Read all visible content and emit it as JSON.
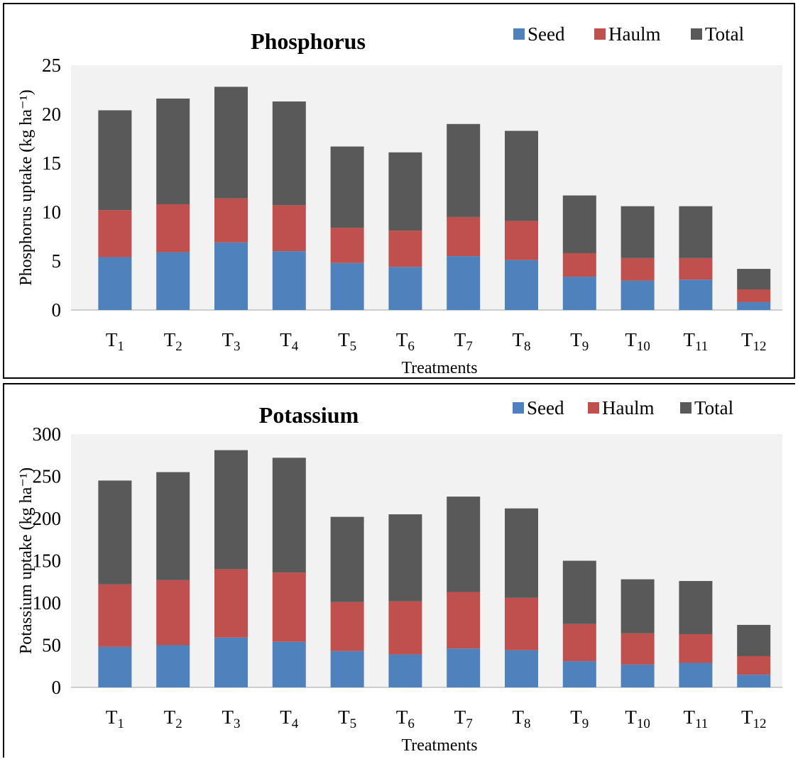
{
  "chart_data": [
    {
      "type": "bar",
      "stacked": true,
      "title": "Phosphorus",
      "xlabel": "Treatments",
      "ylabel": "Phosphorus uptake (kg ha⁻¹)",
      "ylim": [
        0,
        25
      ],
      "yticks": [
        "0",
        "5",
        "10",
        "15",
        "20",
        "25"
      ],
      "grid": false,
      "legend_position": "top-right",
      "categories": [
        "T1",
        "T2",
        "T3",
        "T4",
        "T5",
        "T6",
        "T7",
        "T8",
        "T9",
        "T10",
        "T11",
        "T12"
      ],
      "category_labels": [
        {
          "main": "T",
          "sub": "1"
        },
        {
          "main": "T",
          "sub": "2"
        },
        {
          "main": "T",
          "sub": "3"
        },
        {
          "main": "T",
          "sub": "4"
        },
        {
          "main": "T",
          "sub": "5"
        },
        {
          "main": "T",
          "sub": "6"
        },
        {
          "main": "T",
          "sub": "7"
        },
        {
          "main": "T",
          "sub": "8"
        },
        {
          "main": "T",
          "sub": "9"
        },
        {
          "main": "T",
          "sub": "10"
        },
        {
          "main": "T",
          "sub": "11"
        },
        {
          "main": "T",
          "sub": "12"
        }
      ],
      "series": [
        {
          "name": "Seed",
          "color": "#4F81BD",
          "values": [
            5.4,
            5.9,
            6.9,
            6.0,
            4.8,
            4.4,
            5.5,
            5.1,
            3.4,
            3.0,
            3.1,
            0.8
          ]
        },
        {
          "name": "Haulm",
          "color": "#C0504D",
          "values": [
            4.8,
            4.9,
            4.5,
            4.7,
            3.6,
            3.7,
            4.0,
            4.0,
            2.4,
            2.3,
            2.2,
            1.3
          ]
        },
        {
          "name": "Total",
          "color": "#595959",
          "values": [
            10.2,
            10.8,
            11.4,
            10.6,
            8.3,
            8.0,
            9.5,
            9.2,
            5.9,
            5.3,
            5.3,
            2.1
          ]
        }
      ]
    },
    {
      "type": "bar",
      "stacked": true,
      "title": "Potassium",
      "xlabel": "Treatments",
      "ylabel": "Potassium uptake (kg ha⁻¹)",
      "ylim": [
        0,
        300
      ],
      "yticks": [
        "0",
        "50",
        "100",
        "150",
        "200",
        "250",
        "300"
      ],
      "grid": false,
      "legend_position": "top-right",
      "categories": [
        "T1",
        "T2",
        "T3",
        "T4",
        "T5",
        "T6",
        "T7",
        "T8",
        "T9",
        "T10",
        "T11",
        "T12"
      ],
      "category_labels": [
        {
          "main": "T",
          "sub": "1"
        },
        {
          "main": "T",
          "sub": "2"
        },
        {
          "main": "T",
          "sub": "3"
        },
        {
          "main": "T",
          "sub": "4"
        },
        {
          "main": "T",
          "sub": "5"
        },
        {
          "main": "T",
          "sub": "6"
        },
        {
          "main": "T",
          "sub": "7"
        },
        {
          "main": "T",
          "sub": "8"
        },
        {
          "main": "T",
          "sub": "9"
        },
        {
          "main": "T",
          "sub": "10"
        },
        {
          "main": "T",
          "sub": "11"
        },
        {
          "main": "T",
          "sub": "12"
        }
      ],
      "series": [
        {
          "name": "Seed",
          "color": "#4F81BD",
          "values": [
            48,
            50,
            59,
            54,
            43,
            39,
            46,
            44,
            31,
            27,
            29,
            15
          ]
        },
        {
          "name": "Haulm",
          "color": "#C0504D",
          "values": [
            74,
            77,
            81,
            82,
            58,
            63,
            67,
            62,
            44,
            37,
            34,
            22
          ]
        },
        {
          "name": "Total",
          "color": "#595959",
          "values": [
            123,
            128,
            141,
            136,
            101,
            103,
            113,
            106,
            75,
            64,
            63,
            37
          ]
        }
      ]
    }
  ]
}
